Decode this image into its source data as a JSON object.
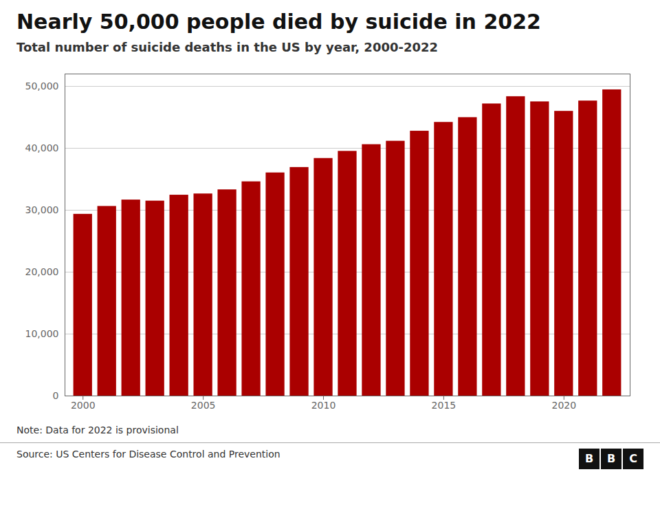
{
  "chart_data": {
    "type": "bar",
    "title": "Nearly 50,000 people died by suicide in 2022",
    "subtitle": "Total number of suicide deaths in the US by year, 2000-2022",
    "note": "Note: Data for 2022 is provisional",
    "source": "Source: US Centers for Disease Control and Prevention",
    "logo": "BBC",
    "x": [
      2000,
      2001,
      2002,
      2003,
      2004,
      2005,
      2006,
      2007,
      2008,
      2009,
      2010,
      2011,
      2012,
      2013,
      2014,
      2015,
      2016,
      2017,
      2018,
      2019,
      2020,
      2021,
      2022
    ],
    "values": [
      29350,
      30622,
      31655,
      31484,
      32439,
      32637,
      33300,
      34598,
      36035,
      36909,
      38364,
      39518,
      40600,
      41149,
      42773,
      44193,
      44965,
      47173,
      48344,
      47511,
      45979,
      47646,
      49449
    ],
    "color": "#aa0000",
    "xlim": [
      1999.25,
      2022.75
    ],
    "xticks": [
      2000,
      2005,
      2010,
      2015,
      2020
    ],
    "ylim": [
      0,
      52000
    ],
    "yticks": [
      0,
      {
        "value": 10000,
        "label": "10,000"
      },
      {
        "value": 20000,
        "label": "20,000"
      },
      {
        "value": 30000,
        "label": "30,000"
      },
      {
        "value": 40000,
        "label": "40,000"
      },
      {
        "value": 50000,
        "label": "50,000"
      }
    ],
    "grid": true
  }
}
